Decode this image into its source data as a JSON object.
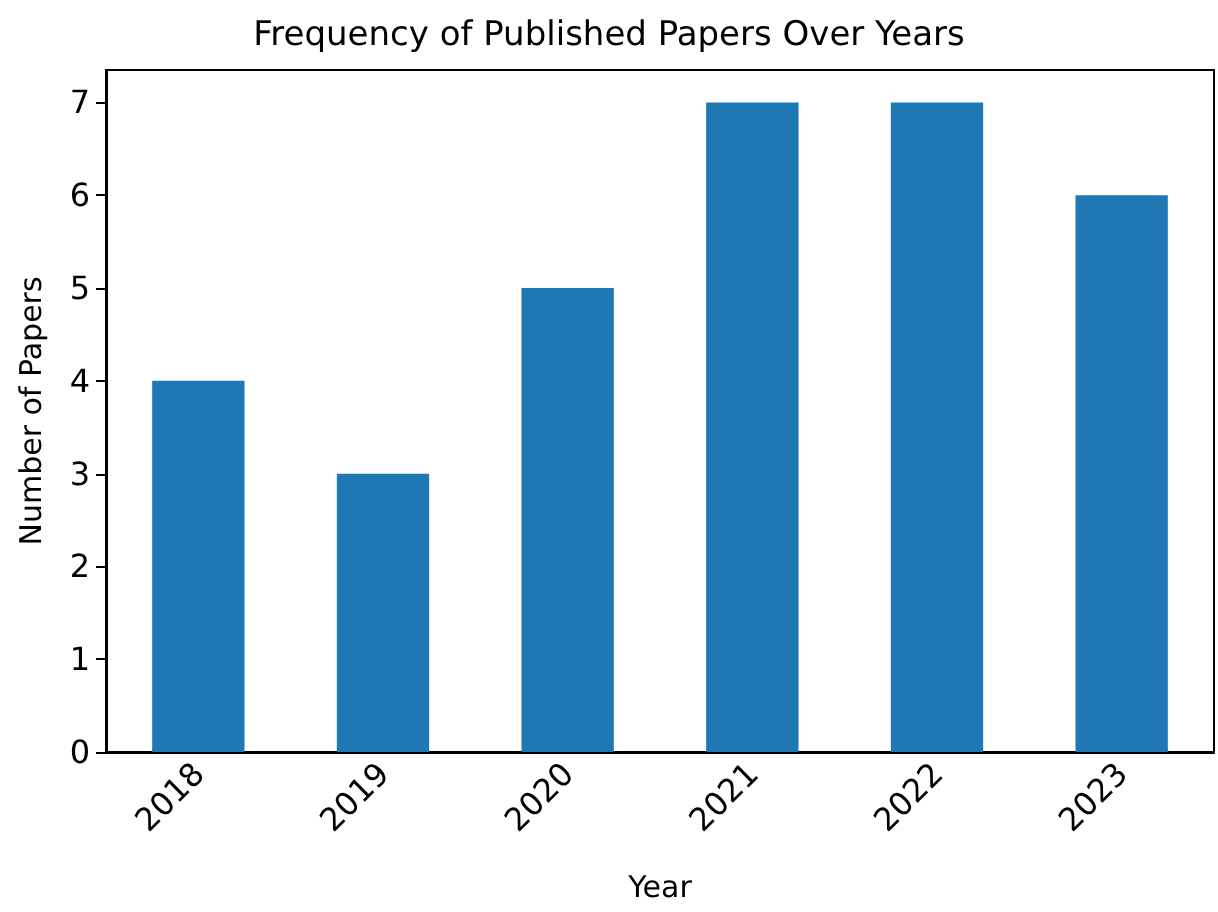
{
  "chart_data": {
    "type": "bar",
    "title": "Frequency of Published Papers Over Years",
    "xlabel": "Year",
    "ylabel": "Number of Papers",
    "categories": [
      "2018",
      "2019",
      "2020",
      "2021",
      "2022",
      "2023"
    ],
    "values": [
      4,
      3,
      5,
      7,
      7,
      6
    ],
    "color": "#1f77b4",
    "ylim": [
      0,
      7.35
    ],
    "yticks": [
      0,
      1,
      2,
      3,
      4,
      5,
      6,
      7
    ]
  }
}
